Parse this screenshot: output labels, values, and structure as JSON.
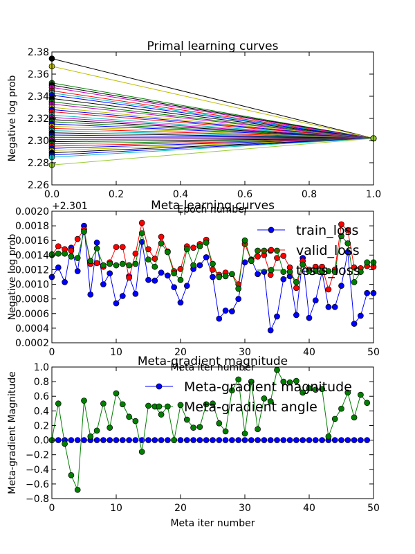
{
  "chart_data": [
    {
      "type": "line",
      "title": "Primal learning curves",
      "xlabel": "Epoch number",
      "ylabel": "Negative log prob",
      "xlim": [
        0,
        1
      ],
      "ylim": [
        2.26,
        2.38
      ],
      "xticks": [
        "0.0",
        "0.2",
        "0.4",
        "0.6",
        "0.8",
        "1.0"
      ],
      "yticks": [
        "2.26",
        "2.28",
        "2.30",
        "2.32",
        "2.34",
        "2.36",
        "2.38"
      ],
      "xtick_values": [
        0,
        0.2,
        0.4,
        0.6,
        0.8,
        1.0
      ],
      "ytick_values": [
        2.26,
        2.28,
        2.3,
        2.32,
        2.34,
        2.36,
        2.38
      ],
      "grid": false,
      "end_value": 2.302,
      "start_values": [
        2.374,
        2.367,
        2.352,
        2.35,
        2.348,
        2.345,
        2.343,
        2.341,
        2.338,
        2.335,
        2.333,
        2.33,
        2.328,
        2.326,
        2.323,
        2.321,
        2.319,
        2.317,
        2.315,
        2.313,
        2.311,
        2.309,
        2.307,
        2.305,
        2.303,
        2.301,
        2.299,
        2.297,
        2.295,
        2.293,
        2.291,
        2.289,
        2.287,
        2.285,
        2.278
      ],
      "series_colors": [
        "#000000",
        "#bfbf00",
        "#007f00",
        "#000000",
        "#bf00bf",
        "#ff0000",
        "#00bfbf",
        "#0000ff",
        "#000000",
        "#007f00",
        "#bf00bf",
        "#bfbf00",
        "#0000ff",
        "#ff0000",
        "#00bfbf",
        "#bf00bf",
        "#000000",
        "#007f00",
        "#0000ff",
        "#bfbf00",
        "#ff0000",
        "#00bfbf",
        "#000000",
        "#0000ff",
        "#007f00",
        "#bf00bf",
        "#000000",
        "#007f00",
        "#ff0000",
        "#0000ff",
        "#bfbf00",
        "#000000",
        "#0000ff",
        "#00bfbf",
        "#9acd32"
      ]
    },
    {
      "type": "line",
      "title": "Meta learning curves",
      "xlabel": "Meta iter number",
      "ylabel": "Negative log prob",
      "offset_text": "+2.301",
      "xlim": [
        0,
        50
      ],
      "ylim": [
        0.0002,
        0.002
      ],
      "xticks": [
        "0",
        "10",
        "20",
        "30",
        "40",
        "50"
      ],
      "yticks": [
        "0.0002",
        "0.0004",
        "0.0006",
        "0.0008",
        "0.0010",
        "0.0012",
        "0.0014",
        "0.0016",
        "0.0018",
        "0.0020"
      ],
      "xtick_values": [
        0,
        10,
        20,
        30,
        40,
        50
      ],
      "ytick_values": [
        0.0002,
        0.0004,
        0.0006,
        0.0008,
        0.001,
        0.0012,
        0.0014,
        0.0016,
        0.0018,
        0.002
      ],
      "grid": false,
      "legend": "top-right",
      "series": [
        {
          "name": "train_loss",
          "color": "#0000ff",
          "values": [
            0.0011,
            0.00123,
            0.00103,
            0.0015,
            0.00118,
            0.0018,
            0.00086,
            0.00157,
            0.001,
            0.00115,
            0.00074,
            0.00084,
            0.00111,
            0.00087,
            0.00158,
            0.00106,
            0.00105,
            0.00116,
            0.00112,
            0.00096,
            0.00075,
            0.00098,
            0.00121,
            0.00126,
            0.00137,
            0.0011,
            0.00053,
            0.00064,
            0.00063,
            0.0008,
            0.0013,
            0.00134,
            0.00114,
            0.00117,
            0.00037,
            0.00056,
            0.00107,
            0.00111,
            0.00058,
            0.00136,
            0.00054,
            0.00078,
            0.00117,
            0.00069,
            0.00069,
            0.00098,
            0.00144,
            0.00046,
            0.00057,
            0.00088,
            0.00088
          ]
        },
        {
          "name": "valid_loss",
          "color": "#ff0000",
          "values": [
            0.0014,
            0.00152,
            0.00148,
            0.00146,
            0.00162,
            0.00175,
            0.00128,
            0.00129,
            0.00124,
            0.0013,
            0.00151,
            0.00151,
            0.00109,
            0.00142,
            0.00184,
            0.00148,
            0.00135,
            0.00165,
            0.00145,
            0.00118,
            0.00121,
            0.00152,
            0.0015,
            0.00155,
            0.00161,
            0.0012,
            0.00113,
            0.00116,
            0.00114,
            0.001,
            0.00155,
            0.00133,
            0.00138,
            0.0014,
            0.00113,
            0.00136,
            0.00139,
            0.00123,
            0.00095,
            0.00132,
            0.0012,
            0.00124,
            0.00124,
            0.00093,
            0.0012,
            0.00182,
            0.00174,
            0.00123,
            0.00122,
            0.00125,
            0.00124
          ]
        },
        {
          "name": "tests_loss",
          "color": "#007f00",
          "values": [
            0.00141,
            0.00142,
            0.00142,
            0.00138,
            0.00136,
            0.00172,
            0.00132,
            0.00149,
            0.00126,
            0.00128,
            0.00126,
            0.00128,
            0.00126,
            0.00128,
            0.0017,
            0.00134,
            0.00124,
            0.00156,
            0.00144,
            0.00115,
            0.00106,
            0.00148,
            0.00126,
            0.00152,
            0.00157,
            0.00128,
            0.0011,
            0.00111,
            0.00114,
            0.00094,
            0.0016,
            0.00132,
            0.00146,
            0.00146,
            0.00146,
            0.00146,
            0.00117,
            0.00117,
            0.00103,
            0.00127,
            0.00118,
            0.00118,
            0.00118,
            0.00118,
            0.00117,
            0.00166,
            0.00156,
            0.00103,
            0.00117,
            0.0013,
            0.0013
          ]
        }
      ]
    },
    {
      "type": "line",
      "title": "Meta-gradient magnitude",
      "xlabel": "Meta iter number",
      "ylabel": "Meta-gradient Magnitude",
      "xlim": [
        0,
        50
      ],
      "ylim": [
        -0.8,
        1.0
      ],
      "xticks": [
        "0",
        "10",
        "20",
        "30",
        "40",
        "50"
      ],
      "yticks": [
        "−0.8",
        "−0.6",
        "−0.4",
        "−0.2",
        "0.0",
        "0.2",
        "0.4",
        "0.6",
        "0.8",
        "1.0"
      ],
      "xtick_values": [
        0,
        10,
        20,
        30,
        40,
        50
      ],
      "ytick_values": [
        -0.8,
        -0.6,
        -0.4,
        -0.2,
        0.0,
        0.2,
        0.4,
        0.6,
        0.8,
        1.0
      ],
      "grid": false,
      "legend": "top-right",
      "series": [
        {
          "name": "Meta-gradient magnitude",
          "color": "#0000ff",
          "values": [
            0.0,
            0.0,
            0.0,
            0.0,
            0.0,
            0.0,
            0.0,
            0.0,
            0.0,
            0.0,
            0.0,
            0.0,
            0.0,
            0.0,
            0.0,
            0.0,
            0.0,
            0.0,
            0.0,
            0.0,
            0.0,
            0.0,
            0.0,
            0.0,
            0.0,
            0.0,
            0.0,
            0.0,
            0.0,
            0.0,
            0.0,
            0.0,
            0.0,
            0.0,
            0.0,
            0.0,
            0.0,
            0.0,
            0.0,
            0.0,
            0.0,
            0.0,
            0.0,
            0.0,
            0.0,
            0.0,
            0.0,
            0.0,
            0.0,
            0.0
          ]
        },
        {
          "name": "Meta-gradient angle",
          "color": "#007f00",
          "values": [
            0.0,
            0.5,
            -0.05,
            -0.48,
            -0.68,
            0.54,
            0.05,
            0.13,
            0.5,
            0.17,
            0.64,
            0.49,
            0.32,
            0.26,
            -0.16,
            0.47,
            0.46,
            0.35,
            0.46,
            0.0,
            0.48,
            0.28,
            0.17,
            0.18,
            0.49,
            0.5,
            0.23,
            0.12,
            0.68,
            0.83,
            0.09,
            0.8,
            0.15,
            0.57,
            0.53,
            0.96,
            0.8,
            0.79,
            0.81,
            0.65,
            0.71,
            0.69,
            0.7,
            0.05,
            0.29,
            0.43,
            0.65,
            0.31,
            0.62,
            0.51
          ]
        }
      ]
    }
  ]
}
